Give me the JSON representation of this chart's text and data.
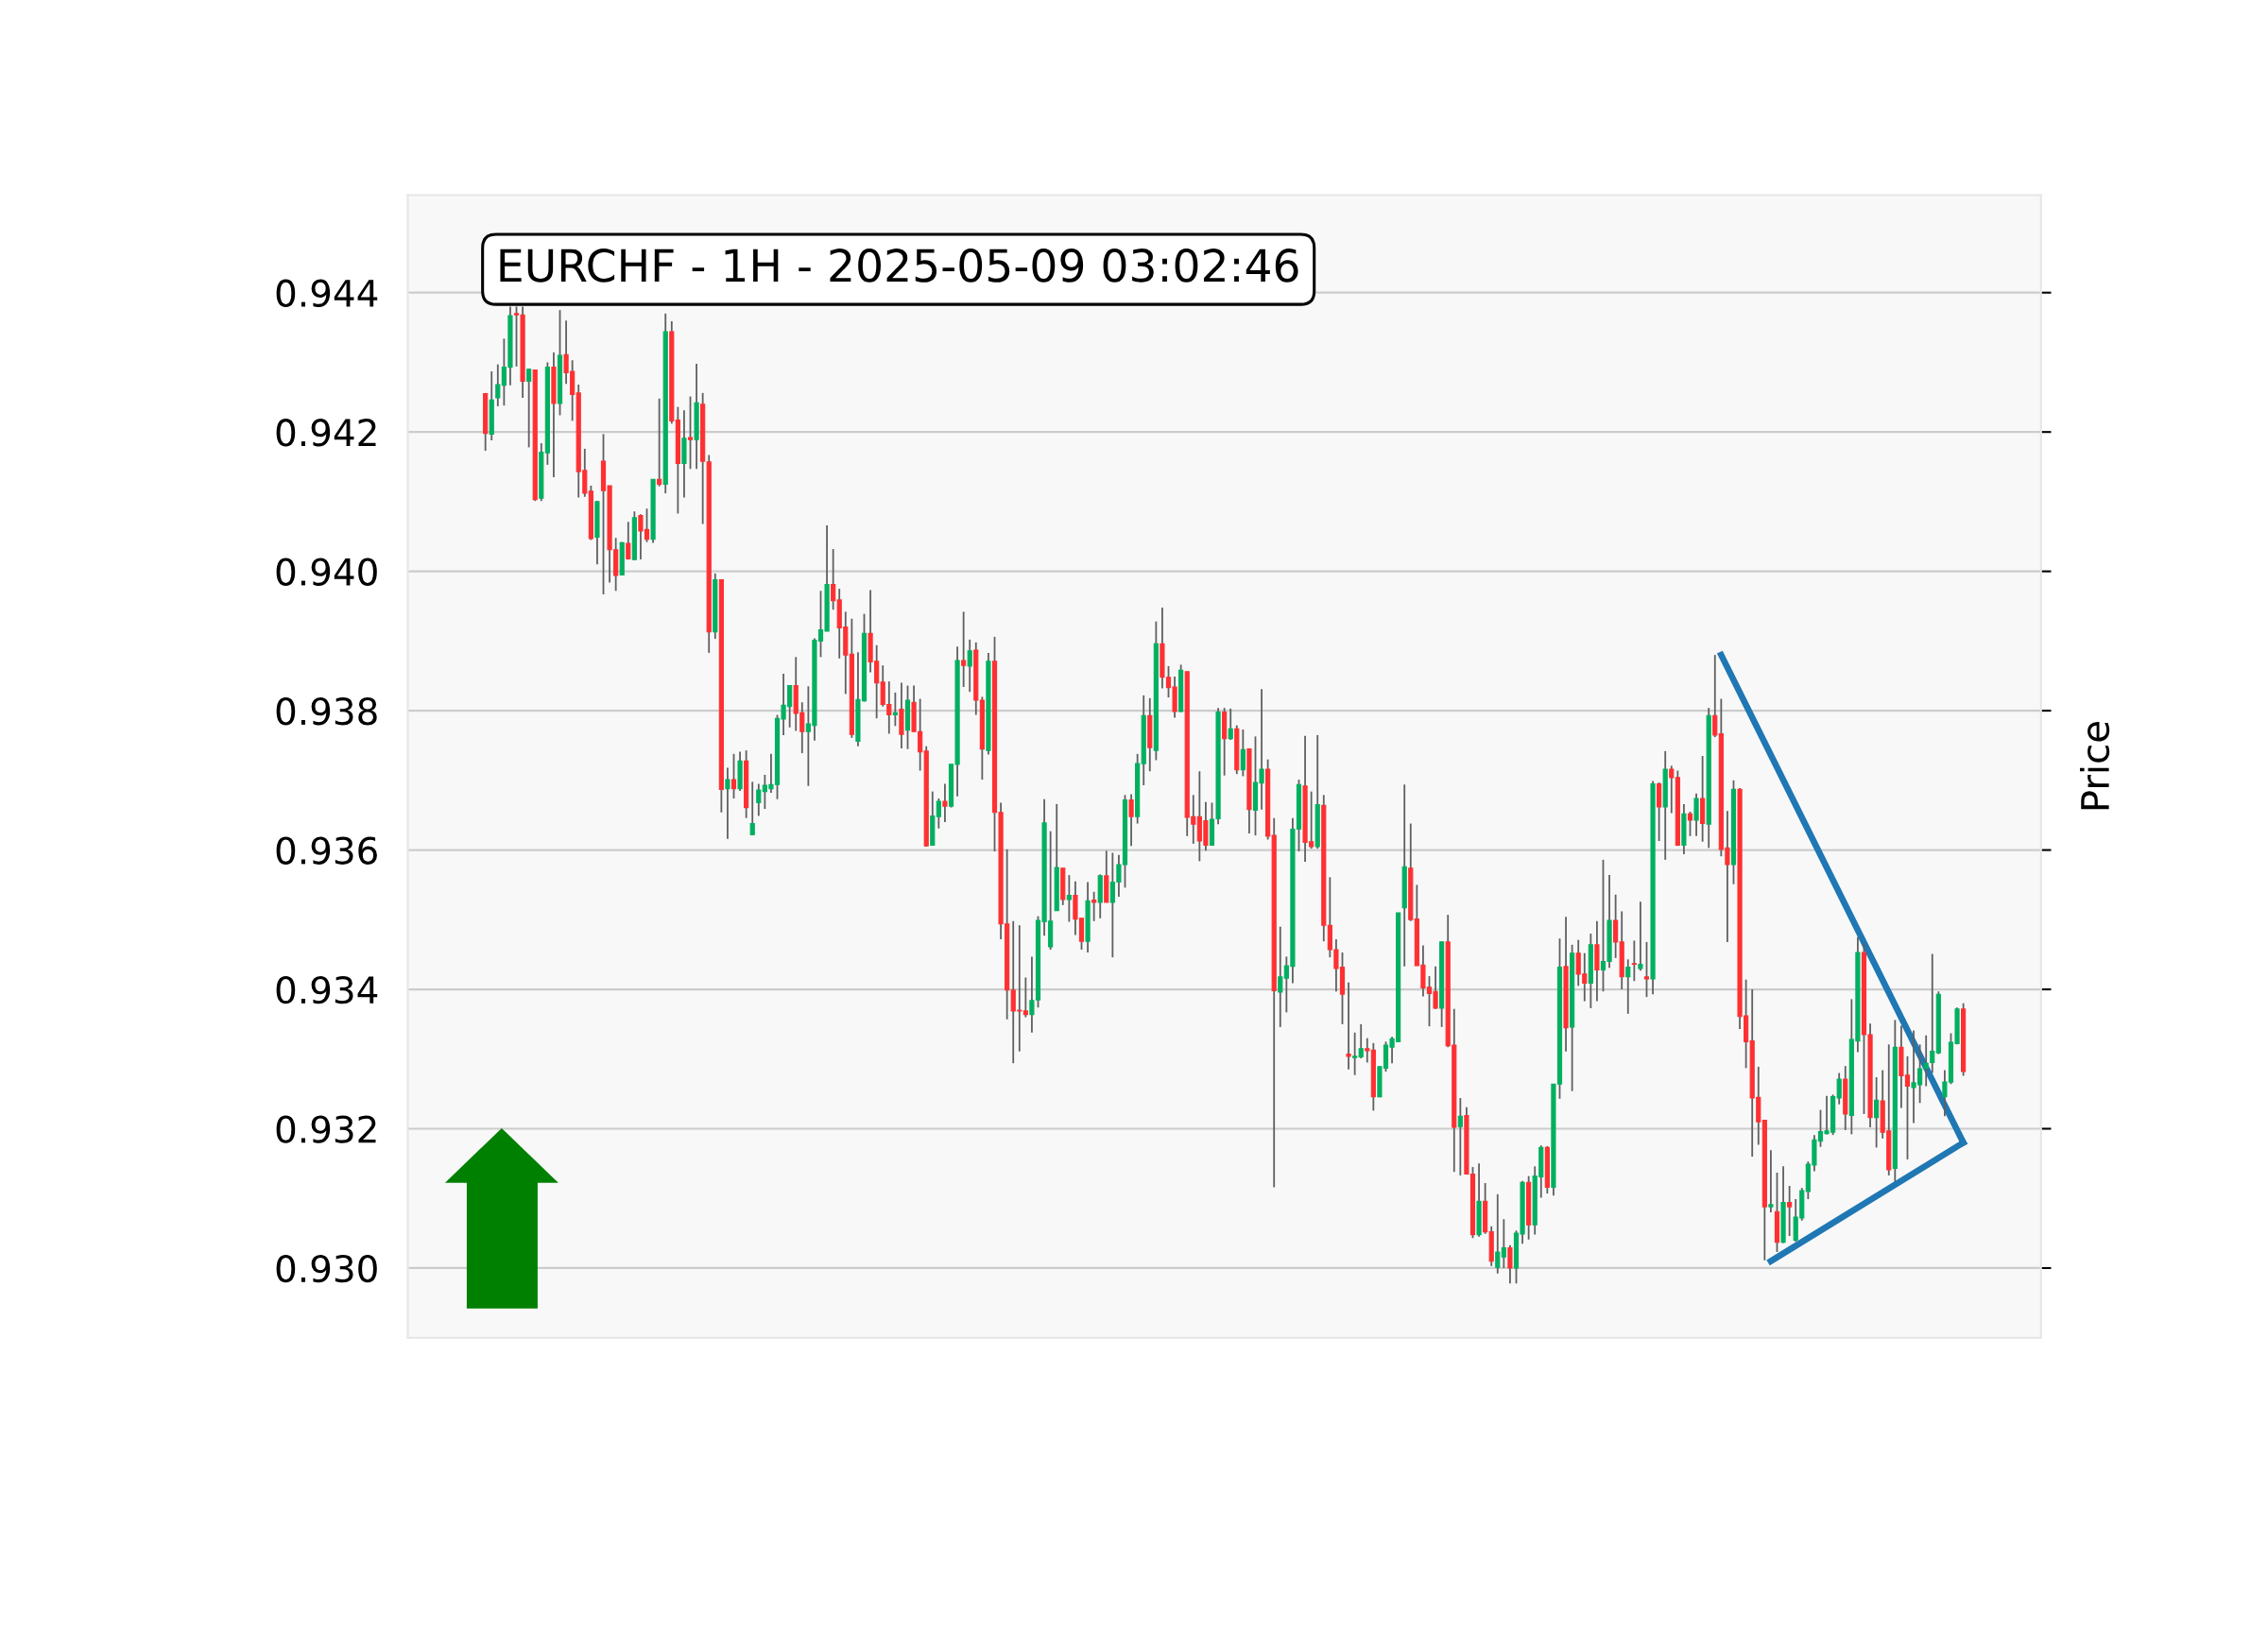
{
  "chart_data": {
    "type": "candlestick",
    "title": "EURCHF - 1H - 2025-05-09 03:02:46",
    "ylabel": "Price",
    "categories": [
      null,
      null,
      null,
      null,
      null,
      null,
      null,
      null,
      null,
      null,
      null,
      null,
      null,
      null,
      null,
      null,
      null,
      null,
      null,
      null,
      null,
      null,
      null,
      null,
      null,
      null,
      null,
      null,
      null,
      null,
      null,
      null,
      null,
      null,
      null,
      null,
      null,
      null,
      null,
      null,
      null,
      null,
      null,
      null,
      null,
      null,
      null,
      null,
      null,
      null,
      null,
      null,
      null,
      null,
      null,
      null,
      null,
      null,
      null,
      null,
      null,
      null,
      null,
      null,
      null,
      null,
      null,
      null,
      null,
      null,
      null,
      null,
      null,
      null,
      null,
      null,
      null,
      null,
      null,
      null,
      null,
      null,
      null,
      null,
      null,
      null,
      null,
      null,
      null,
      null,
      null,
      null,
      null,
      null,
      null,
      null,
      null,
      null,
      null,
      null,
      null,
      null,
      null,
      null,
      null,
      null,
      null,
      null,
      null,
      null,
      null,
      null,
      null,
      null,
      null,
      null,
      null,
      null,
      null,
      null,
      null,
      null,
      null,
      null,
      null,
      null,
      null,
      null,
      null,
      null,
      null,
      null,
      null,
      null,
      null,
      null,
      null,
      null,
      null,
      null,
      null,
      null,
      null,
      null,
      null,
      null,
      null,
      null,
      null,
      null,
      null,
      null,
      null,
      null,
      null,
      null,
      null,
      null,
      null,
      null,
      null,
      null,
      null,
      null,
      null,
      null,
      null,
      null,
      null,
      null,
      null,
      null,
      null,
      null,
      null,
      null,
      null,
      null,
      null,
      null,
      null,
      null,
      null,
      null,
      null,
      null,
      null,
      null,
      null,
      null,
      null,
      null,
      null,
      null,
      null,
      null,
      null,
      null,
      null,
      null,
      null,
      null,
      null,
      null,
      null,
      null,
      null,
      null,
      null,
      null,
      null,
      null,
      null,
      null,
      null,
      null,
      null,
      null,
      null,
      null,
      null,
      null,
      null,
      null,
      null,
      null,
      null,
      null,
      null,
      null,
      null,
      null,
      null,
      null,
      null,
      null,
      null,
      null,
      null,
      null,
      null,
      null,
      null,
      null,
      null,
      null,
      null,
      null,
      null,
      null,
      null,
      null,
      null,
      null,
      null,
      null,
      null,
      null,
      null,
      null,
      null,
      null,
      null
    ],
    "ohlc": [
      null,
      null,
      null,
      null,
      null,
      null,
      null,
      null,
      null,
      null,
      null,
      null,
      [
        0.94255,
        0.94256,
        0.94173,
        0.94198
      ],
      [
        0.94197,
        0.94287,
        0.94188,
        0.94246
      ],
      [
        0.94249,
        0.94297,
        0.94237,
        0.94268
      ],
      [
        0.94267,
        0.94334,
        0.94238,
        0.94293
      ],
      [
        0.94293,
        0.9438,
        0.94267,
        0.94367
      ],
      [
        0.9437,
        0.9438,
        0.94294,
        0.94368
      ],
      [
        0.94368,
        0.9438,
        0.94249,
        0.94273
      ],
      [
        0.94273,
        0.94291,
        0.94178,
        0.9429
      ],
      [
        0.94289,
        0.94289,
        0.94101,
        0.94103
      ],
      [
        0.94105,
        0.94184,
        0.94101,
        0.94171
      ],
      [
        0.9417,
        0.943,
        0.94153,
        0.94293
      ],
      [
        0.94293,
        0.94314,
        0.94135,
        0.94241
      ],
      [
        0.94241,
        0.94375,
        0.94224,
        0.9431
      ],
      [
        0.94311,
        0.9436,
        0.94269,
        0.94285
      ],
      [
        0.94287,
        0.94303,
        0.94216,
        0.94254
      ],
      [
        0.94256,
        0.94268,
        0.94106,
        0.94143
      ],
      [
        0.94145,
        0.94176,
        0.94107,
        0.94112
      ],
      [
        0.94115,
        0.94123,
        0.94045,
        0.94047
      ],
      [
        0.94049,
        0.94101,
        0.9401,
        0.941
      ],
      [
        0.94158,
        0.94197,
        0.93967,
        0.94116
      ],
      [
        0.94123,
        0.94123,
        0.93984,
        0.94031
      ],
      [
        0.94031,
        0.94048,
        0.93972,
        0.93994
      ],
      [
        0.93995,
        0.94042,
        0.93995,
        0.94041
      ],
      [
        0.9404,
        0.94071,
        0.94017,
        0.94018
      ],
      [
        0.94017,
        0.94086,
        0.94016,
        0.94077
      ],
      [
        0.9408,
        0.94082,
        0.94017,
        0.94058
      ],
      [
        0.9406,
        0.9409,
        0.94042,
        0.94046
      ],
      [
        0.94046,
        0.94132,
        0.94041,
        0.94132
      ],
      [
        0.94132,
        0.94248,
        0.94122,
        0.94125
      ],
      [
        0.94125,
        0.9437,
        0.94112,
        0.94344
      ],
      [
        0.94344,
        0.94359,
        0.94212,
        0.94216
      ],
      [
        0.94217,
        0.94236,
        0.94083,
        0.94155
      ],
      [
        0.94155,
        0.94231,
        0.94106,
        0.94191
      ],
      [
        0.94192,
        0.94251,
        0.94147,
        0.94189
      ],
      [
        0.94189,
        0.94298,
        0.94147,
        0.94242
      ],
      [
        0.9424,
        0.94256,
        0.94068,
        0.94158
      ],
      [
        0.94157,
        0.94167,
        0.93883,
        0.93913
      ],
      [
        0.93913,
        0.93997,
        0.93903,
        0.93988
      ],
      [
        0.93988,
        0.93988,
        0.93654,
        0.93687
      ],
      [
        0.93688,
        0.93718,
        0.93616,
        0.93701
      ],
      [
        0.93701,
        0.93738,
        0.93674,
        0.93688
      ],
      [
        0.93688,
        0.93741,
        0.93685,
        0.93728
      ],
      [
        0.93728,
        0.93743,
        0.93646,
        0.93661
      ],
      [
        0.93622,
        0.93698,
        0.93622,
        0.93638
      ],
      [
        0.93668,
        0.93695,
        0.93649,
        0.93686
      ],
      [
        0.93684,
        0.93708,
        0.93659,
        0.93693
      ],
      [
        0.93688,
        0.93738,
        0.93682,
        0.93694
      ],
      [
        0.93694,
        0.93794,
        0.93673,
        0.93789
      ],
      [
        0.93788,
        0.93853,
        0.93765,
        0.93808
      ],
      [
        0.93806,
        0.93836,
        0.93776,
        0.93836
      ],
      [
        0.93836,
        0.93877,
        0.93771,
        0.93796
      ],
      [
        0.93797,
        0.93812,
        0.93739,
        0.9377
      ],
      [
        0.9377,
        0.93835,
        0.93692,
        0.93781
      ],
      [
        0.93779,
        0.93904,
        0.93757,
        0.93901
      ],
      [
        0.939,
        0.93972,
        0.93877,
        0.93916
      ],
      [
        0.93914,
        0.94066,
        0.93914,
        0.93981
      ],
      [
        0.93981,
        0.94032,
        0.93945,
        0.93958
      ],
      [
        0.93959,
        0.93975,
        0.93875,
        0.93919
      ],
      [
        0.9392,
        0.93942,
        0.93824,
        0.9388
      ],
      [
        0.93881,
        0.93932,
        0.93761,
        0.93766
      ],
      [
        0.93756,
        0.93884,
        0.93749,
        0.93816
      ],
      [
        0.93814,
        0.93939,
        0.93813,
        0.93911
      ],
      [
        0.93911,
        0.93973,
        0.93855,
        0.9387
      ],
      [
        0.93871,
        0.93894,
        0.93789,
        0.9384
      ],
      [
        0.93841,
        0.93865,
        0.93806,
        0.93809
      ],
      [
        0.93809,
        0.93842,
        0.93767,
        0.93794
      ],
      [
        0.93794,
        0.93826,
        0.93778,
        0.93797
      ],
      [
        0.93802,
        0.9384,
        0.93746,
        0.93766
      ],
      [
        0.93772,
        0.93836,
        0.93745,
        0.93815
      ],
      [
        0.93812,
        0.93836,
        0.9377,
        0.9377
      ],
      [
        0.9377,
        0.93817,
        0.93714,
        0.93741
      ],
      [
        0.93742,
        0.93749,
        0.93605,
        0.93606
      ],
      [
        0.93607,
        0.93684,
        0.93607,
        0.93649
      ],
      [
        0.93648,
        0.93674,
        0.93631,
        0.9367
      ],
      [
        0.9367,
        0.93695,
        0.9364,
        0.93663
      ],
      [
        0.93663,
        0.93723,
        0.93661,
        0.93723
      ],
      [
        0.93723,
        0.93892,
        0.93677,
        0.93872
      ],
      [
        0.93872,
        0.93942,
        0.93834,
        0.93865
      ],
      [
        0.93864,
        0.93902,
        0.93827,
        0.93886
      ],
      [
        0.93887,
        0.93898,
        0.93794,
        0.93815
      ],
      [
        0.93815,
        0.9382,
        0.93701,
        0.93745
      ],
      [
        0.93743,
        0.93883,
        0.93737,
        0.93871
      ],
      [
        0.93871,
        0.93906,
        0.93598,
        0.93654
      ],
      [
        0.93654,
        0.93668,
        0.93472,
        0.93494
      ],
      [
        0.93494,
        0.93601,
        0.93357,
        0.93399
      ],
      [
        0.93399,
        0.93498,
        0.93294,
        0.93369
      ],
      [
        0.9337,
        0.93492,
        0.93311,
        0.93369
      ],
      [
        0.93369,
        0.93417,
        0.9336,
        0.93364
      ],
      [
        0.93364,
        0.93447,
        0.93338,
        0.93384
      ],
      [
        0.93385,
        0.93505,
        0.93374,
        0.93499
      ],
      [
        0.93497,
        0.93673,
        0.93477,
        0.93639
      ],
      [
        0.93461,
        0.93627,
        0.93457,
        0.93498
      ],
      [
        0.93513,
        0.93666,
        0.93513,
        0.93575
      ],
      [
        0.93574,
        0.93574,
        0.93521,
        0.93529
      ],
      [
        0.93529,
        0.93564,
        0.93497,
        0.93535
      ],
      [
        0.93535,
        0.93555,
        0.93478,
        0.93501
      ],
      [
        0.93502,
        0.93502,
        0.93457,
        0.93469
      ],
      [
        0.93469,
        0.93554,
        0.93453,
        0.93527
      ],
      [
        0.93528,
        0.9354,
        0.93498,
        0.93525
      ],
      [
        0.93525,
        0.93565,
        0.93502,
        0.93563
      ],
      [
        0.93563,
        0.93599,
        0.93525,
        0.93525
      ],
      [
        0.93525,
        0.93596,
        0.93446,
        0.93554
      ],
      [
        0.93554,
        0.93593,
        0.93533,
        0.93579
      ],
      [
        0.93579,
        0.93679,
        0.93546,
        0.93672
      ],
      [
        0.93672,
        0.9368,
        0.93606,
        0.93648
      ],
      [
        0.93648,
        0.93738,
        0.93638,
        0.93724
      ],
      [
        0.93724,
        0.93822,
        0.93693,
        0.93793
      ],
      [
        0.93793,
        0.93818,
        0.93713,
        0.93747
      ],
      [
        0.93743,
        0.93928,
        0.93729,
        0.93896
      ],
      [
        0.93896,
        0.93948,
        0.93832,
        0.93848
      ],
      [
        0.93848,
        0.93864,
        0.93819,
        0.93833
      ],
      [
        0.93834,
        0.93849,
        0.9379,
        0.93799
      ],
      [
        0.93799,
        0.93866,
        0.93798,
        0.93858
      ],
      [
        0.93856,
        0.93856,
        0.9362,
        0.93647
      ],
      [
        0.93648,
        0.93679,
        0.93609,
        0.93637
      ],
      [
        0.93648,
        0.93713,
        0.93584,
        0.93613
      ],
      [
        0.93642,
        0.93669,
        0.93599,
        0.93607
      ],
      [
        0.93607,
        0.93668,
        0.93607,
        0.93644
      ],
      [
        0.93645,
        0.93804,
        0.93637,
        0.93798
      ],
      [
        0.93798,
        0.93804,
        0.93707,
        0.9376
      ],
      [
        0.9376,
        0.93803,
        0.93758,
        0.93774
      ],
      [
        0.93774,
        0.93779,
        0.93709,
        0.93715
      ],
      [
        0.93715,
        0.93773,
        0.93706,
        0.93744
      ],
      [
        0.93745,
        0.93745,
        0.93624,
        0.93658
      ],
      [
        0.93657,
        0.93763,
        0.93621,
        0.93697
      ],
      [
        0.93696,
        0.93831,
        0.93658,
        0.93716
      ],
      [
        0.93716,
        0.9373,
        0.93615,
        0.9362
      ],
      [
        0.93621,
        0.93646,
        0.93116,
        0.93398
      ],
      [
        0.93396,
        0.9349,
        0.93346,
        0.93418
      ],
      [
        0.93416,
        0.93447,
        0.93367,
        0.93434
      ],
      [
        0.93433,
        0.93646,
        0.93409,
        0.9363
      ],
      [
        0.9363,
        0.93701,
        0.93598,
        0.93694
      ],
      [
        0.93692,
        0.93764,
        0.93583,
        0.93611
      ],
      [
        0.93612,
        0.93684,
        0.93602,
        0.93605
      ],
      [
        0.93605,
        0.93765,
        0.93602,
        0.93665
      ],
      [
        0.93664,
        0.93679,
        0.93469,
        0.93492
      ],
      [
        0.93492,
        0.93561,
        0.93446,
        0.93457
      ],
      [
        0.93457,
        0.93472,
        0.93397,
        0.9343
      ],
      [
        0.93432,
        0.93453,
        0.9335,
        0.93393
      ],
      [
        0.93307,
        0.9341,
        0.93285,
        0.93304
      ],
      [
        0.93302,
        0.93338,
        0.93277,
        0.93304
      ],
      [
        0.93303,
        0.9335,
        0.93301,
        0.93315
      ],
      [
        0.93315,
        0.9333,
        0.93295,
        0.93312
      ],
      [
        0.93313,
        0.93323,
        0.93226,
        0.93246
      ],
      [
        0.93246,
        0.9329,
        0.93245,
        0.93289
      ],
      [
        0.93287,
        0.93325,
        0.93282,
        0.9332
      ],
      [
        0.93317,
        0.93332,
        0.93294,
        0.93329
      ],
      [
        0.93325,
        0.9351,
        0.93325,
        0.9351
      ],
      [
        0.93517,
        0.93694,
        0.93433,
        0.93576
      ],
      [
        0.93574,
        0.93638,
        0.93498,
        0.935
      ],
      [
        0.93501,
        0.9355,
        0.93434,
        0.93434
      ],
      [
        0.93435,
        0.93463,
        0.9339,
        0.93402
      ],
      [
        0.93403,
        0.93419,
        0.93347,
        0.93394
      ],
      [
        0.93397,
        0.93433,
        0.93372,
        0.93373
      ],
      [
        0.93373,
        0.93469,
        0.93346,
        0.93468
      ],
      [
        0.93468,
        0.93507,
        0.93317,
        0.93319
      ],
      [
        0.9332,
        0.93372,
        0.93138,
        0.93202
      ],
      [
        0.93203,
        0.93244,
        0.93133,
        0.93218
      ],
      [
        0.93219,
        0.93231,
        0.93135,
        0.93135
      ],
      [
        0.93135,
        0.93145,
        0.93043,
        0.93048
      ],
      [
        0.93048,
        0.9315,
        0.93045,
        0.93096
      ],
      [
        0.93096,
        0.93122,
        0.93049,
        0.93052
      ],
      [
        0.93052,
        0.9306,
        0.93003,
        0.9301
      ],
      [
        0.93001,
        0.93106,
        0.92992,
        0.93023
      ],
      [
        0.93016,
        0.9307,
        0.93,
        0.93029
      ],
      [
        0.93029,
        0.93033,
        0.92978,
        0.93
      ],
      [
        0.93,
        0.93054,
        0.92978,
        0.9305
      ],
      [
        0.93049,
        0.93125,
        0.93035,
        0.93123
      ],
      [
        0.93123,
        0.93132,
        0.93041,
        0.93062
      ],
      [
        0.93062,
        0.93146,
        0.93048,
        0.93132
      ],
      [
        0.93131,
        0.93176,
        0.93101,
        0.93173
      ],
      [
        0.93173,
        0.93175,
        0.93107,
        0.93116
      ],
      [
        0.93116,
        0.93264,
        0.93104,
        0.93264
      ],
      [
        0.93264,
        0.93473,
        0.93243,
        0.93432
      ],
      [
        0.93433,
        0.93504,
        0.93311,
        0.93345
      ],
      [
        0.93346,
        0.93464,
        0.93254,
        0.93452
      ],
      [
        0.93452,
        0.93471,
        0.93405,
        0.93422
      ],
      [
        0.93422,
        0.93452,
        0.93383,
        0.93409
      ],
      [
        0.93409,
        0.9348,
        0.93373,
        0.93464
      ],
      [
        0.93464,
        0.93498,
        0.93383,
        0.93428
      ],
      [
        0.93428,
        0.93586,
        0.93397,
        0.9344
      ],
      [
        0.9344,
        0.93564,
        0.93431,
        0.93499
      ],
      [
        0.93499,
        0.93536,
        0.93445,
        0.93468
      ],
      [
        0.93468,
        0.93512,
        0.934,
        0.93418
      ],
      [
        0.93418,
        0.93443,
        0.93365,
        0.93432
      ],
      [
        0.93437,
        0.9347,
        0.93412,
        0.93436
      ],
      [
        0.9343,
        0.93526,
        0.93427,
        0.93436
      ],
      [
        0.93418,
        0.93468,
        0.93389,
        0.93415
      ],
      [
        0.93415,
        0.93699,
        0.93393,
        0.93695
      ],
      [
        0.93695,
        0.93697,
        0.93613,
        0.93662
      ],
      [
        0.93662,
        0.93742,
        0.93586,
        0.93716
      ],
      [
        0.93716,
        0.93721,
        0.93653,
        0.93704
      ],
      [
        0.93704,
        0.93714,
        0.93606,
        0.93607
      ],
      [
        0.93607,
        0.93666,
        0.93594,
        0.93652
      ],
      [
        0.93652,
        0.93655,
        0.9362,
        0.93643
      ],
      [
        0.93643,
        0.93681,
        0.9362,
        0.93674
      ],
      [
        0.93674,
        0.93735,
        0.93612,
        0.93638
      ],
      [
        0.93637,
        0.93804,
        0.93603,
        0.93793
      ],
      [
        0.93793,
        0.9388,
        0.93762,
        0.93765
      ],
      [
        0.93767,
        0.93817,
        0.93591,
        0.93601
      ],
      [
        0.93603,
        0.93656,
        0.93468,
        0.93579
      ],
      [
        0.93579,
        0.937,
        0.93551,
        0.93687
      ],
      [
        0.93687,
        0.93689,
        0.93343,
        0.93361
      ],
      [
        0.93362,
        0.93414,
        0.93287,
        0.93325
      ],
      [
        0.93326,
        0.934,
        0.9316,
        0.93244
      ],
      [
        0.93245,
        0.93289,
        0.93177,
        0.9321
      ],
      [
        0.93212,
        0.93212,
        0.93011,
        0.93088
      ],
      [
        0.93088,
        0.93169,
        0.9308,
        0.93091
      ],
      [
        0.93081,
        0.93137,
        0.93023,
        0.93037
      ],
      [
        0.93037,
        0.93146,
        0.93036,
        0.93094
      ],
      [
        0.93094,
        0.93118,
        0.93046,
        0.93088
      ],
      [
        0.9304,
        0.93099,
        0.93038,
        0.93073
      ],
      [
        0.93072,
        0.93115,
        0.93068,
        0.93111
      ],
      [
        0.9311,
        0.93153,
        0.93099,
        0.93149
      ],
      [
        0.93148,
        0.93191,
        0.93139,
        0.93184
      ],
      [
        0.93182,
        0.93227,
        0.93174,
        0.93196
      ],
      [
        0.93193,
        0.93247,
        0.93192,
        0.93197
      ],
      [
        0.93195,
        0.93249,
        0.93191,
        0.93246
      ],
      [
        0.93244,
        0.9328,
        0.93235,
        0.93271
      ],
      [
        0.93271,
        0.9329,
        0.93198,
        0.93221
      ],
      [
        0.93219,
        0.93386,
        0.93192,
        0.93328
      ],
      [
        0.93326,
        0.93475,
        0.9331,
        0.93453
      ],
      [
        0.93453,
        0.93466,
        0.93221,
        0.93335
      ],
      [
        0.93335,
        0.93351,
        0.93202,
        0.93216
      ],
      [
        0.93216,
        0.93274,
        0.93173,
        0.93241
      ],
      [
        0.9324,
        0.93284,
        0.93186,
        0.93195
      ],
      [
        0.93197,
        0.93321,
        0.93133,
        0.93141
      ],
      [
        0.93143,
        0.93356,
        0.93124,
        0.93317
      ],
      [
        0.93317,
        0.93348,
        0.9323,
        0.93276
      ],
      [
        0.93277,
        0.93304,
        0.93156,
        0.93261
      ],
      [
        0.93259,
        0.93341,
        0.93208,
        0.93266
      ],
      [
        0.93263,
        0.93321,
        0.93237,
        0.93286
      ],
      [
        0.93287,
        0.93334,
        0.93261,
        0.93294
      ],
      [
        0.93295,
        0.93451,
        0.9328,
        0.93311
      ],
      [
        0.93309,
        0.93397,
        0.93307,
        0.93393
      ],
      [
        0.93246,
        0.93284,
        0.93218,
        0.93267
      ],
      [
        0.93267,
        0.93337,
        0.93264,
        0.93324
      ],
      [
        0.93322,
        0.93374,
        0.93321,
        0.93372
      ],
      [
        0.93372,
        0.9338,
        0.93276,
        0.93282
      ],
      null,
      null,
      null,
      null,
      null,
      null,
      null,
      null,
      null,
      null,
      null,
      null
    ],
    "colors": [
      null,
      null,
      null,
      null,
      null,
      null,
      null,
      null,
      null,
      null,
      null,
      null,
      "#fe3032",
      "#00b060",
      "#00b060",
      "#00b060",
      "#00b060",
      "#fe3032",
      "#fe3032",
      "#00b060",
      "#fe3032",
      "#00b060",
      "#00b060",
      "#fe3032",
      "#00b060",
      "#fe3032",
      "#fe3032",
      "#fe3032",
      "#fe3032",
      "#fe3032",
      "#00b060",
      "#fe3032",
      "#fe3032",
      "#fe3032",
      "#00b060",
      "#fe3032",
      "#00b060",
      "#fe3032",
      "#fe3032",
      "#00b060",
      "#fe3032",
      "#00b060",
      "#fe3032",
      "#fe3032",
      "#00b060",
      "#fe3032",
      "#00b060",
      "#fe3032",
      "#fe3032",
      "#00b060",
      "#fe3032",
      "#00b060",
      "#fe3032",
      "#00b060",
      "#fe3032",
      "#00b060",
      "#00b060",
      "#00b060",
      "#00b060",
      "#00b060",
      "#00b060",
      "#00b060",
      "#fe3032",
      "#fe3032",
      "#00b060",
      "#00b060",
      "#00b060",
      "#00b060",
      "#fe3032",
      "#fe3032",
      "#fe3032",
      "#fe3032",
      "#00b060",
      "#00b060",
      "#fe3032",
      "#fe3032",
      "#fe3032",
      "#fe3032",
      "#00b060",
      "#fe3032",
      "#00b060",
      "#fe3032",
      "#fe3032",
      "#fe3032",
      "#00b060",
      "#00b060",
      "#fe3032",
      "#00b060",
      "#00b060",
      "#fe3032",
      "#00b060",
      "#fe3032",
      "#fe3032",
      "#00b060",
      "#fe3032",
      "#fe3032",
      "#fe3032",
      "#fe3032",
      "#fe3032",
      "#fe3032",
      "#00b060",
      "#00b060",
      "#00b060",
      "#00b060",
      "#00b060",
      "#fe3032",
      "#00b060",
      "#fe3032",
      "#fe3032",
      "#00b060",
      "#fe3032",
      "#00b060",
      "#fe3032",
      "#00b060",
      "#00b060",
      "#00b060",
      "#fe3032",
      "#00b060",
      "#00b060",
      "#fe3032",
      "#00b060",
      "#fe3032",
      "#fe3032",
      "#fe3032",
      "#00b060",
      "#fe3032",
      "#fe3032",
      "#fe3032",
      "#fe3032",
      "#00b060",
      "#00b060",
      "#fe3032",
      "#00b060",
      "#fe3032",
      "#00b060",
      "#fe3032",
      "#00b060",
      "#00b060",
      "#fe3032",
      "#fe3032",
      "#00b060",
      "#00b060",
      "#00b060",
      "#00b060",
      "#fe3032",
      "#fe3032",
      "#00b060",
      "#fe3032",
      "#fe3032",
      "#fe3032",
      "#fe3032",
      "#fe3032",
      "#00b060",
      "#00b060",
      "#fe3032",
      "#fe3032",
      "#00b060",
      "#00b060",
      "#00b060",
      "#00b060",
      "#00b060",
      "#fe3032",
      "#fe3032",
      "#fe3032",
      "#fe3032",
      "#fe3032",
      "#00b060",
      "#fe3032",
      "#fe3032",
      "#00b060",
      "#fe3032",
      "#fe3032",
      "#00b060",
      "#fe3032",
      "#fe3032",
      "#00b060",
      "#00b060",
      "#fe3032",
      "#00b060",
      "#00b060",
      "#fe3032",
      "#00b060",
      "#00b060",
      "#fe3032",
      "#00b060",
      "#00b060",
      "#fe3032",
      "#00b060",
      "#fe3032",
      "#fe3032",
      "#00b060",
      "#fe3032",
      "#00b060",
      "#00b060",
      "#fe3032",
      "#fe3032",
      "#00b060",
      "#fe3032",
      "#00b060",
      "#fe3032",
      "#00b060",
      "#fe3032",
      "#00b060",
      "#fe3032",
      "#fe3032",
      "#00b060",
      "#fe3032",
      "#00b060",
      "#fe3032",
      "#00b060",
      "#fe3032",
      "#fe3032",
      "#fe3032",
      "#00b060",
      "#fe3032",
      "#fe3032",
      "#fe3032",
      "#fe3032",
      "#fe3032",
      "#00b060",
      "#fe3032",
      "#00b060",
      "#fe3032",
      "#00b060",
      "#00b060",
      "#00b060",
      "#00b060",
      "#00b060",
      "#00b060",
      "#00b060",
      "#00b060",
      "#fe3032",
      "#00b060",
      "#00b060",
      "#fe3032",
      "#fe3032",
      "#00b060",
      "#fe3032",
      "#fe3032",
      "#00b060",
      "#fe3032",
      "#fe3032",
      "#00b060",
      "#00b060",
      "#00b060",
      "#00b060",
      "#00b060",
      "#00b060",
      "#00b060",
      "#00b060",
      "#fe3032",
      null,
      null,
      null,
      null,
      null,
      null,
      null,
      null,
      null,
      null,
      null,
      null
    ],
    "series": [
      {
        "type": "line",
        "color": "#1f77b4",
        "values": [
          null,
          null,
          null,
          null,
          null,
          null,
          null,
          null,
          null,
          null,
          null,
          null,
          null,
          null,
          null,
          null,
          null,
          null,
          null,
          null,
          null,
          null,
          null,
          null,
          null,
          null,
          null,
          null,
          null,
          null,
          null,
          null,
          null,
          null,
          null,
          null,
          null,
          null,
          null,
          null,
          null,
          null,
          null,
          null,
          null,
          null,
          null,
          null,
          null,
          null,
          null,
          null,
          null,
          null,
          null,
          null,
          null,
          null,
          null,
          null,
          null,
          null,
          null,
          null,
          null,
          null,
          null,
          null,
          null,
          null,
          null,
          null,
          null,
          null,
          null,
          null,
          null,
          null,
          null,
          null,
          null,
          null,
          null,
          null,
          null,
          null,
          null,
          null,
          null,
          null,
          null,
          null,
          null,
          null,
          null,
          null,
          null,
          null,
          null,
          null,
          null,
          null,
          null,
          null,
          null,
          null,
          null,
          null,
          null,
          null,
          null,
          null,
          null,
          null,
          null,
          null,
          null,
          null,
          null,
          null,
          null,
          null,
          null,
          null,
          null,
          null,
          null,
          null,
          null,
          null,
          null,
          null,
          null,
          null,
          null,
          null,
          null,
          null,
          null,
          null,
          null,
          null,
          null,
          null,
          null,
          null,
          null,
          null,
          null,
          null,
          null,
          null,
          null,
          null,
          null,
          null,
          null,
          null,
          null,
          null,
          null,
          null,
          null,
          null,
          null,
          null,
          null,
          null,
          null,
          null,
          null,
          null,
          null,
          null,
          null,
          null,
          null,
          null,
          null,
          null,
          null,
          null,
          null,
          null,
          null,
          null,
          null,
          null,
          null,
          null,
          null,
          null,
          null,
          null,
          null,
          null,
          null,
          null,
          null,
          null,
          null,
          null,
          null,
          null,
          null,
          null,
          null,
          null,
          null,
          null,
          null,
          0.9388,
          null,
          null,
          null,
          null,
          null,
          null,
          null,
          null,
          null,
          null,
          null,
          null,
          null,
          null,
          null,
          null,
          null,
          null,
          null,
          null,
          null,
          null,
          null,
          null,
          null,
          null,
          null,
          null,
          null,
          null,
          null,
          null,
          null,
          null,
          null,
          null,
          null,
          null,
          0.9318,
          null,
          null,
          null,
          null,
          null,
          null,
          null,
          null,
          null,
          null,
          null,
          null
        ]
      },
      {
        "type": "line",
        "color": "#1f77b4",
        "values": [
          null,
          null,
          null,
          null,
          null,
          null,
          null,
          null,
          null,
          null,
          null,
          null,
          null,
          null,
          null,
          null,
          null,
          null,
          null,
          null,
          null,
          null,
          null,
          null,
          null,
          null,
          null,
          null,
          null,
          null,
          null,
          null,
          null,
          null,
          null,
          null,
          null,
          null,
          null,
          null,
          null,
          null,
          null,
          null,
          null,
          null,
          null,
          null,
          null,
          null,
          null,
          null,
          null,
          null,
          null,
          null,
          null,
          null,
          null,
          null,
          null,
          null,
          null,
          null,
          null,
          null,
          null,
          null,
          null,
          null,
          null,
          null,
          null,
          null,
          null,
          null,
          null,
          null,
          null,
          null,
          null,
          null,
          null,
          null,
          null,
          null,
          null,
          null,
          null,
          null,
          null,
          null,
          null,
          null,
          null,
          null,
          null,
          null,
          null,
          null,
          null,
          null,
          null,
          null,
          null,
          null,
          null,
          null,
          null,
          null,
          null,
          null,
          null,
          null,
          null,
          null,
          null,
          null,
          null,
          null,
          null,
          null,
          null,
          null,
          null,
          null,
          null,
          null,
          null,
          null,
          null,
          null,
          null,
          null,
          null,
          null,
          null,
          null,
          null,
          null,
          null,
          null,
          null,
          null,
          null,
          null,
          null,
          null,
          null,
          null,
          null,
          null,
          null,
          null,
          null,
          null,
          null,
          null,
          null,
          null,
          null,
          null,
          null,
          null,
          null,
          null,
          null,
          null,
          null,
          null,
          null,
          null,
          null,
          null,
          null,
          null,
          null,
          null,
          null,
          null,
          null,
          null,
          null,
          null,
          null,
          null,
          null,
          null,
          null,
          null,
          null,
          null,
          null,
          null,
          null,
          null,
          null,
          null,
          null,
          null,
          null,
          null,
          null,
          null,
          null,
          null,
          null,
          null,
          null,
          null,
          null,
          null,
          null,
          null,
          null,
          null,
          null,
          null,
          null,
          0.9301,
          null,
          null,
          null,
          null,
          null,
          null,
          null,
          null,
          null,
          null,
          null,
          null,
          null,
          null,
          null,
          null,
          null,
          null,
          null,
          null,
          null,
          null,
          null,
          null,
          null,
          null,
          null,
          null,
          null,
          null,
          0.9318,
          null,
          null,
          null,
          null,
          null,
          null,
          null,
          null,
          null,
          null,
          null,
          null
        ]
      }
    ],
    "ylim": [
      0.929,
      0.9454
    ],
    "yticks": [
      {
        "value": 0.93,
        "label": "0.930"
      },
      0.932,
      0.934,
      0.936,
      0.938,
      {
        "value": 0.94,
        "label": "0.940"
      },
      0.942,
      0.944
    ],
    "grid": "y",
    "tick_labels": "y"
  }
}
